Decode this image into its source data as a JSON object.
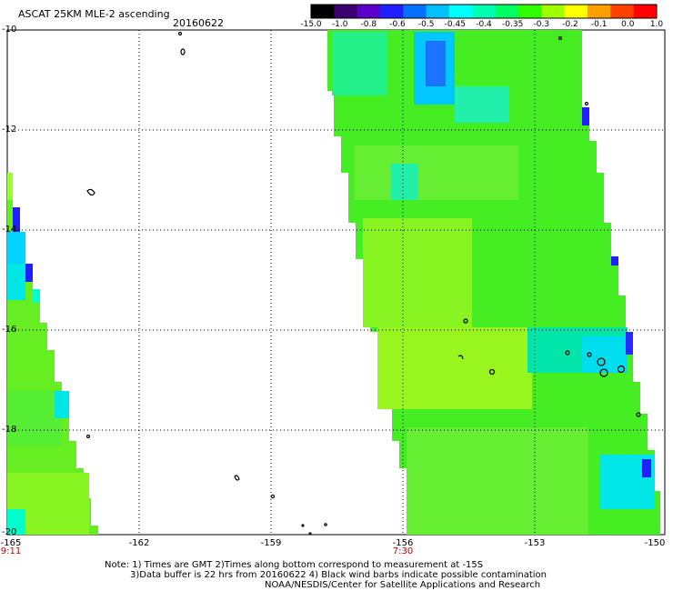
{
  "title": "ASCAT 25KM MLE-2 ascending",
  "date": "20160622",
  "colorbar": {
    "labels": [
      "-15.0",
      "-1.0",
      "-0.8",
      "-0.6",
      "-0.5",
      "-0.45",
      "-0.4",
      "-0.35",
      "-0.3",
      "-0.2",
      "-0.1",
      "0.0",
      "1.0"
    ],
    "colors": [
      "#000000",
      "#3a0070",
      "#5a00c8",
      "#2020ff",
      "#0070ff",
      "#00c0ff",
      "#00ffff",
      "#00ffb0",
      "#00ff60",
      "#30ff00",
      "#a0ff00",
      "#ffff00",
      "#ffa000",
      "#ff4000",
      "#ff0000"
    ]
  },
  "axes": {
    "y_labels": [
      "-10",
      "-12",
      "-14",
      "-16",
      "-18",
      "-20"
    ],
    "x_labels": [
      "-165",
      "-162",
      "-159",
      "-156",
      "-153",
      "-150"
    ],
    "time_labels": [
      "9:11",
      "7:30"
    ]
  },
  "notes": {
    "line1": "Note: 1) Times are GMT 2)Times along bottom correspond to measurement at -15S",
    "line2": "3)Data buffer is 22 hrs from 20160622 4) Black wind barbs indicate possible contamination",
    "line3": "NOAA/NESDIS/Center for Satellite Applications and Research"
  }
}
